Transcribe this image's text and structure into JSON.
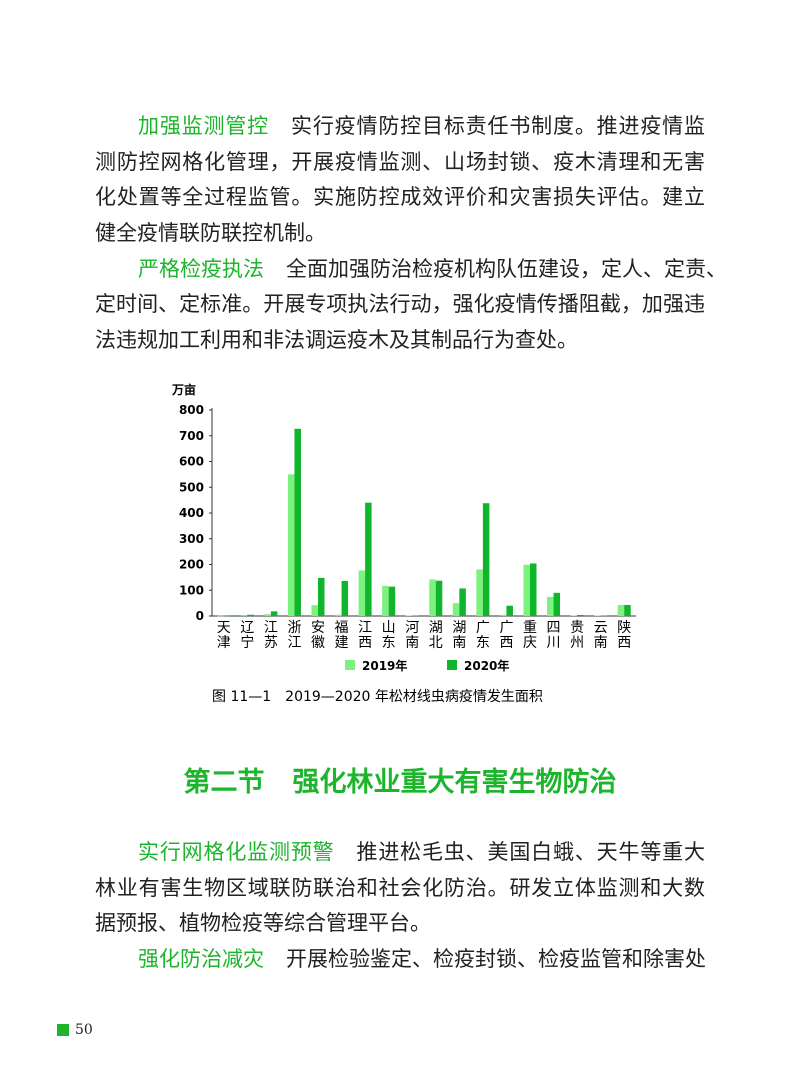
{
  "paragraphs_top": [
    {
      "lead": "加强监测管控",
      "lines": [
        "实行疫情防控目标责任书制度。推进疫情监",
        "测防控网格化管理，开展疫情监测、山场封锁、疫木清理和无害",
        "化处置等全过程监管。实施防控成效评价和灾害损失评估。建立",
        "健全疫情联防联控机制。"
      ]
    },
    {
      "lead": "严格检疫执法",
      "lines": [
        "全面加强防治检疫机构队伍建设，定人、定责、",
        "定时间、定标准。开展专项执法行动，强化疫情传播阻截，加强违",
        "法违规加工利用和非法调运疫木及其制品行为查处。"
      ]
    }
  ],
  "chart_data": {
    "type": "bar",
    "title": "图 11—1　2019—2020 年松材线虫病疫情发生面积",
    "ylabel": "万亩",
    "ylim": [
      0,
      800
    ],
    "yticks": [
      0,
      100,
      200,
      300,
      400,
      500,
      600,
      700,
      800
    ],
    "grid": false,
    "legend_placement": "bottom",
    "categories": [
      "天津",
      "辽宁",
      "江苏",
      "浙江",
      "安徽",
      "福建",
      "江西",
      "山东",
      "河南",
      "湖北",
      "湖南",
      "广东",
      "广西",
      "重庆",
      "四川",
      "贵州",
      "云南",
      "陕西"
    ],
    "series": [
      {
        "name": "2019年",
        "color": "#7cf27c",
        "values": [
          1,
          4,
          7,
          550,
          42,
          5,
          177,
          117,
          2,
          142,
          50,
          181,
          5,
          199,
          74,
          2,
          2,
          43
        ]
      },
      {
        "name": "2020年",
        "color": "#0fb52a",
        "values": [
          1,
          5,
          18,
          727,
          148,
          136,
          440,
          114,
          2,
          137,
          107,
          438,
          40,
          204,
          90,
          4,
          2,
          43
        ]
      }
    ]
  },
  "section": {
    "number": "第二节",
    "title": "强化林业重大有害生物防治"
  },
  "paragraphs_bottom": [
    {
      "lead": "实行网格化监测预警",
      "lines": [
        "推进松毛虫、美国白蛾、天牛等重大",
        "林业有害生物区域联防联治和社会化防治。研发立体监测和大数",
        "据预报、植物检疫等综合管理平台。"
      ]
    },
    {
      "lead": "强化防治减灾",
      "lines": [
        "开展检验鉴定、检疫封锁、检疫监管和除害处"
      ]
    }
  ],
  "page_number": "50"
}
